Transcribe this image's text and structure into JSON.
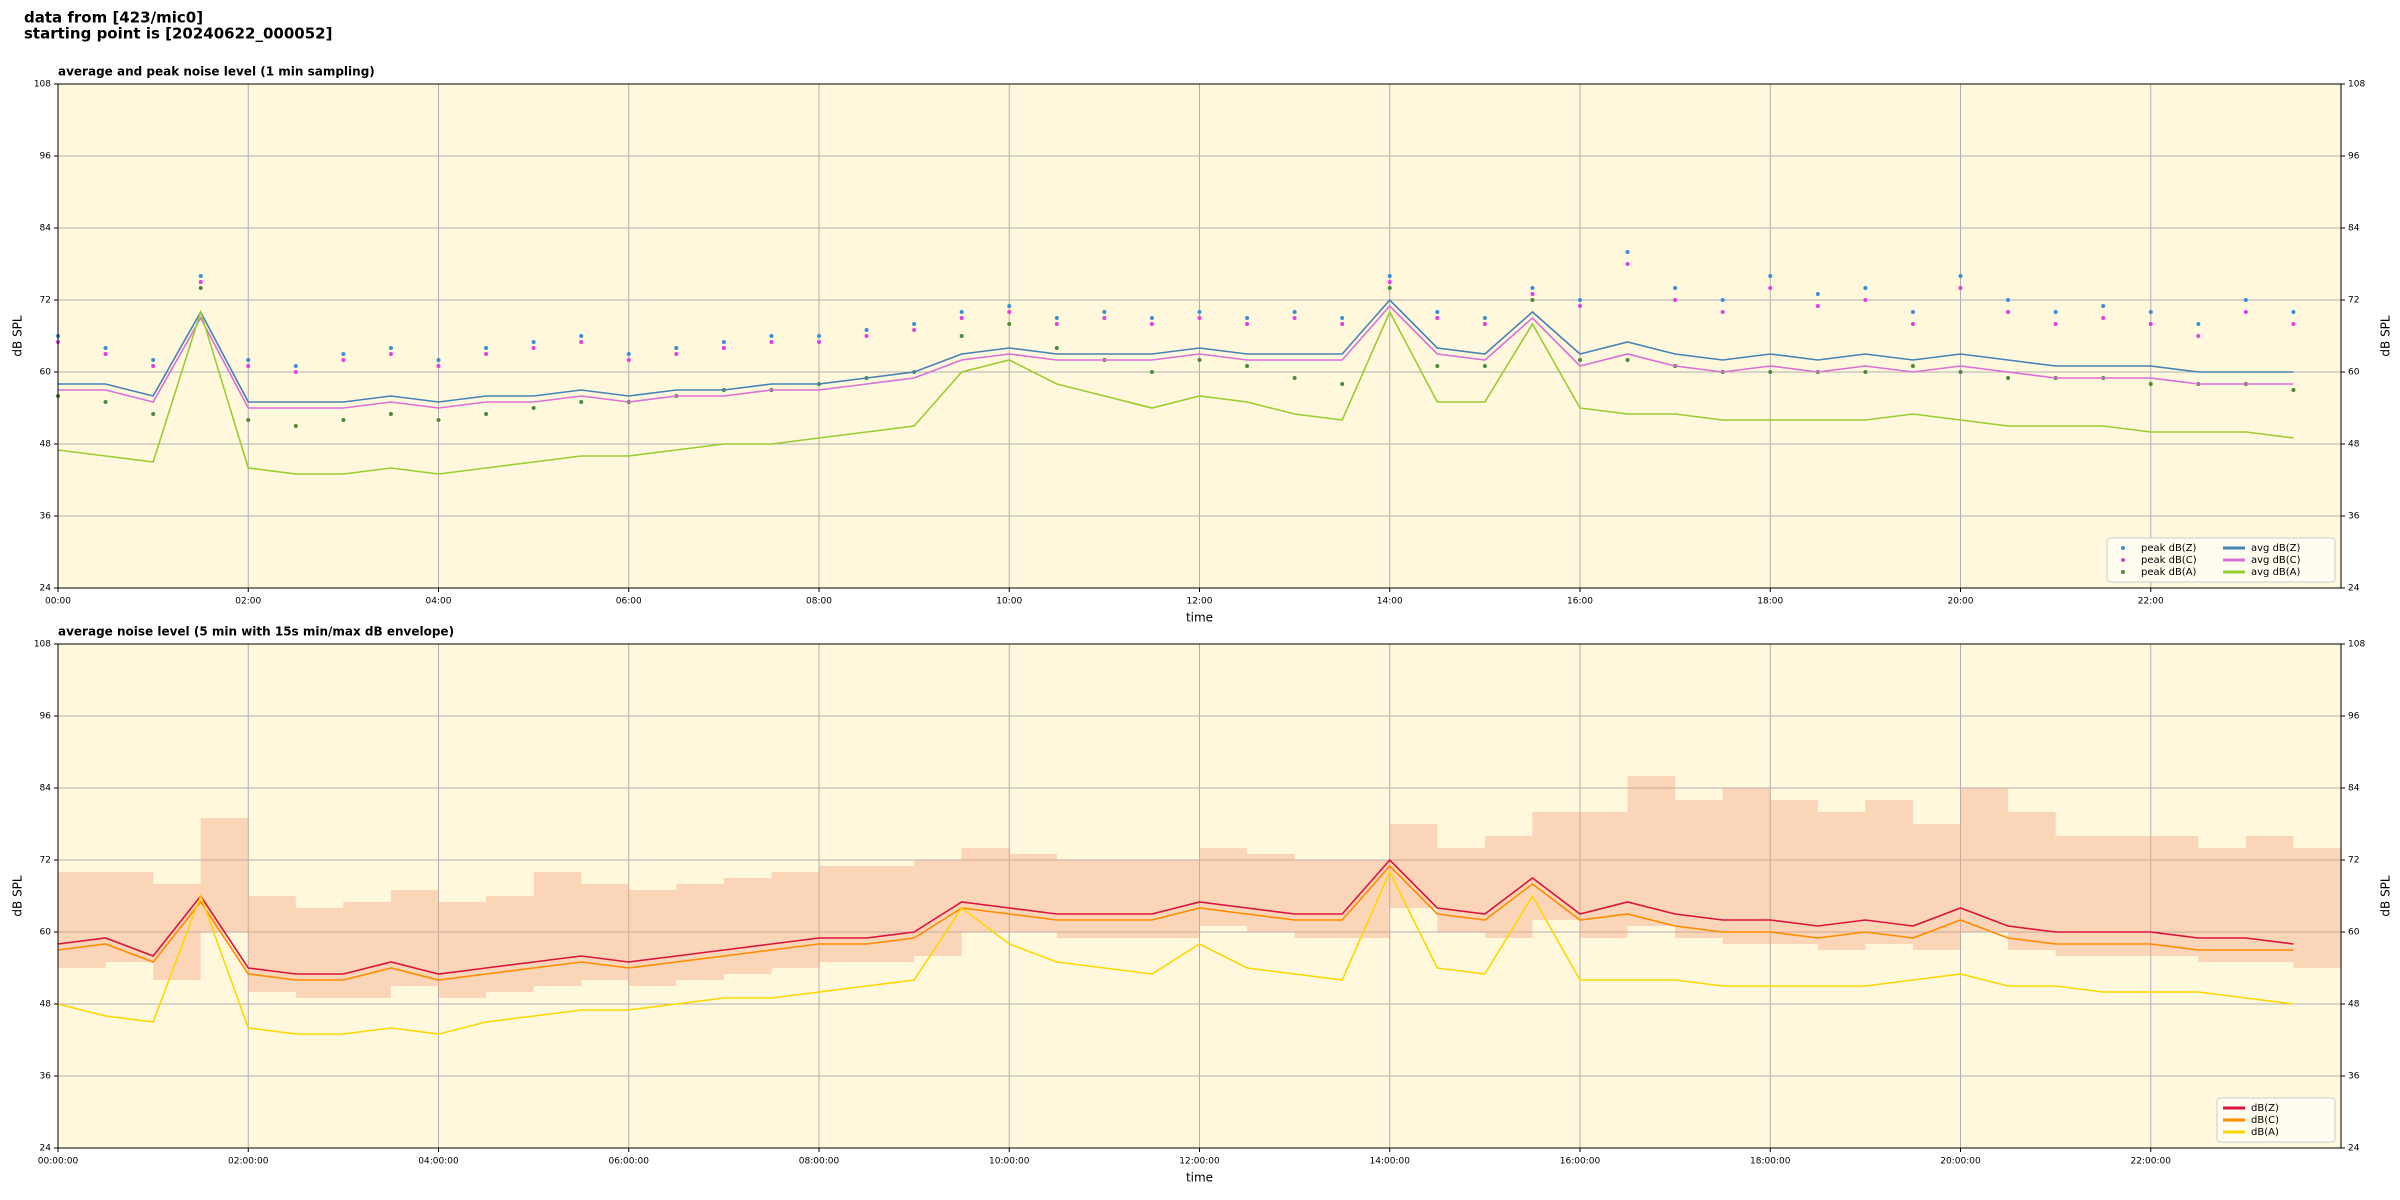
{
  "header": [
    "data from [423/mic0]",
    "starting point is [20240622_000052]"
  ],
  "chart_data": [
    {
      "type": "line",
      "title": "average and peak noise level (1 min sampling)",
      "xlabel": "time",
      "ylabel": "dB SPL",
      "background": "#fff8dc",
      "grid": true,
      "legend": "lower right",
      "xlim": [
        "00:00",
        "24:00"
      ],
      "xticks": [
        "00:00",
        "02:00",
        "04:00",
        "06:00",
        "08:00",
        "10:00",
        "12:00",
        "14:00",
        "16:00",
        "18:00",
        "20:00",
        "22:00"
      ],
      "ylim": [
        24,
        108
      ],
      "yticks": [
        24,
        36,
        48,
        60,
        72,
        84,
        96,
        108
      ],
      "x": [
        "00:00",
        "00:30",
        "01:00",
        "01:30",
        "02:00",
        "02:30",
        "03:00",
        "03:30",
        "04:00",
        "04:30",
        "05:00",
        "05:30",
        "06:00",
        "06:30",
        "07:00",
        "07:30",
        "08:00",
        "08:30",
        "09:00",
        "09:30",
        "10:00",
        "10:30",
        "11:00",
        "11:30",
        "12:00",
        "12:30",
        "13:00",
        "13:30",
        "14:00",
        "14:30",
        "15:00",
        "15:30",
        "16:00",
        "16:30",
        "17:00",
        "17:30",
        "18:00",
        "18:30",
        "19:00",
        "19:30",
        "20:00",
        "20:30",
        "21:00",
        "21:30",
        "22:00",
        "22:30",
        "23:00",
        "23:30"
      ],
      "series": [
        {
          "name": "peak dB(Z)",
          "type": "scatter",
          "color": "#3a8fd8",
          "values": [
            66,
            64,
            62,
            76,
            62,
            61,
            63,
            64,
            62,
            64,
            65,
            66,
            63,
            64,
            65,
            66,
            66,
            67,
            68,
            70,
            71,
            69,
            70,
            69,
            70,
            69,
            70,
            69,
            76,
            70,
            69,
            74,
            72,
            80,
            74,
            72,
            76,
            73,
            74,
            70,
            76,
            72,
            70,
            71,
            70,
            68,
            72,
            70
          ]
        },
        {
          "name": "peak dB(C)",
          "type": "scatter",
          "color": "#e040e0",
          "values": [
            65,
            63,
            61,
            75,
            61,
            60,
            62,
            63,
            61,
            63,
            64,
            65,
            62,
            63,
            64,
            65,
            65,
            66,
            67,
            69,
            70,
            68,
            69,
            68,
            69,
            68,
            69,
            68,
            75,
            69,
            68,
            73,
            71,
            78,
            72,
            70,
            74,
            71,
            72,
            68,
            74,
            70,
            68,
            69,
            68,
            66,
            70,
            68
          ]
        },
        {
          "name": "peak dB(A)",
          "type": "scatter",
          "color": "#4a8a3a",
          "values": [
            56,
            55,
            53,
            74,
            52,
            51,
            52,
            53,
            52,
            53,
            54,
            55,
            55,
            56,
            57,
            57,
            58,
            59,
            60,
            66,
            68,
            64,
            62,
            60,
            62,
            61,
            59,
            58,
            74,
            61,
            61,
            72,
            62,
            62,
            61,
            60,
            60,
            60,
            60,
            61,
            60,
            59,
            59,
            59,
            58,
            58,
            58,
            57
          ]
        },
        {
          "name": "avg dB(Z)",
          "type": "line",
          "color": "#4682b4",
          "values": [
            58,
            58,
            56,
            70,
            55,
            55,
            55,
            56,
            55,
            56,
            56,
            57,
            56,
            57,
            57,
            58,
            58,
            59,
            60,
            63,
            64,
            63,
            63,
            63,
            64,
            63,
            63,
            63,
            72,
            64,
            63,
            70,
            63,
            65,
            63,
            62,
            63,
            62,
            63,
            62,
            63,
            62,
            61,
            61,
            61,
            60,
            60,
            60
          ]
        },
        {
          "name": "avg dB(C)",
          "type": "line",
          "color": "#da70d6",
          "values": [
            57,
            57,
            55,
            69,
            54,
            54,
            54,
            55,
            54,
            55,
            55,
            56,
            55,
            56,
            56,
            57,
            57,
            58,
            59,
            62,
            63,
            62,
            62,
            62,
            63,
            62,
            62,
            62,
            71,
            63,
            62,
            69,
            61,
            63,
            61,
            60,
            61,
            60,
            61,
            60,
            61,
            60,
            59,
            59,
            59,
            58,
            58,
            58
          ]
        },
        {
          "name": "avg dB(A)",
          "type": "line",
          "color": "#9acd32",
          "values": [
            47,
            46,
            45,
            70,
            44,
            43,
            43,
            44,
            43,
            44,
            45,
            46,
            46,
            47,
            48,
            48,
            49,
            50,
            51,
            60,
            62,
            58,
            56,
            54,
            56,
            55,
            53,
            52,
            70,
            55,
            55,
            68,
            54,
            53,
            53,
            52,
            52,
            52,
            52,
            53,
            52,
            51,
            51,
            51,
            50,
            50,
            50,
            49
          ]
        }
      ]
    },
    {
      "type": "line",
      "title": "average noise level (5 min with 15s min/max dB envelope)",
      "xlabel": "time",
      "ylabel": "dB SPL",
      "background": "#fff8dc",
      "grid": true,
      "legend": "lower right",
      "xlim": [
        "00:00",
        "24:00"
      ],
      "xticks": [
        "00:00:00",
        "02:00:00",
        "04:00:00",
        "06:00:00",
        "08:00:00",
        "10:00:00",
        "12:00:00",
        "14:00:00",
        "16:00:00",
        "18:00:00",
        "20:00:00",
        "22:00:00"
      ],
      "ylim": [
        24,
        108
      ],
      "yticks": [
        24,
        36,
        48,
        60,
        72,
        84,
        96,
        108
      ],
      "x": [
        "00:00",
        "00:30",
        "01:00",
        "01:30",
        "02:00",
        "02:30",
        "03:00",
        "03:30",
        "04:00",
        "04:30",
        "05:00",
        "05:30",
        "06:00",
        "06:30",
        "07:00",
        "07:30",
        "08:00",
        "08:30",
        "09:00",
        "09:30",
        "10:00",
        "10:30",
        "11:00",
        "11:30",
        "12:00",
        "12:30",
        "13:00",
        "13:30",
        "14:00",
        "14:30",
        "15:00",
        "15:30",
        "16:00",
        "16:30",
        "17:00",
        "17:30",
        "18:00",
        "18:30",
        "19:00",
        "19:30",
        "20:00",
        "20:30",
        "21:00",
        "21:30",
        "22:00",
        "22:30",
        "23:00",
        "23:30"
      ],
      "envelope": {
        "color": "#f4a080",
        "low": [
          54,
          55,
          52,
          60,
          50,
          49,
          49,
          51,
          49,
          50,
          51,
          52,
          51,
          52,
          53,
          54,
          55,
          55,
          56,
          60,
          60,
          59,
          59,
          59,
          61,
          60,
          59,
          59,
          64,
          60,
          59,
          62,
          59,
          61,
          59,
          58,
          58,
          57,
          58,
          57,
          60,
          57,
          56,
          56,
          56,
          55,
          55,
          54
        ],
        "high": [
          70,
          70,
          68,
          79,
          66,
          64,
          65,
          67,
          65,
          66,
          70,
          68,
          67,
          68,
          69,
          70,
          71,
          71,
          72,
          74,
          73,
          72,
          72,
          72,
          74,
          73,
          72,
          72,
          78,
          74,
          76,
          80,
          80,
          86,
          82,
          84,
          82,
          80,
          82,
          78,
          84,
          80,
          76,
          76,
          76,
          74,
          76,
          74
        ]
      },
      "series": [
        {
          "name": "dB(Z)",
          "type": "line",
          "color": "#dc143c",
          "values": [
            58,
            59,
            56,
            66,
            54,
            53,
            53,
            55,
            53,
            54,
            55,
            56,
            55,
            56,
            57,
            58,
            59,
            59,
            60,
            65,
            64,
            63,
            63,
            63,
            65,
            64,
            63,
            63,
            72,
            64,
            63,
            69,
            63,
            65,
            63,
            62,
            62,
            61,
            62,
            61,
            64,
            61,
            60,
            60,
            60,
            59,
            59,
            58
          ]
        },
        {
          "name": "dB(C)",
          "type": "line",
          "color": "#ff8c00",
          "values": [
            57,
            58,
            55,
            65,
            53,
            52,
            52,
            54,
            52,
            53,
            54,
            55,
            54,
            55,
            56,
            57,
            58,
            58,
            59,
            64,
            63,
            62,
            62,
            62,
            64,
            63,
            62,
            62,
            71,
            63,
            62,
            68,
            62,
            63,
            61,
            60,
            60,
            59,
            60,
            59,
            62,
            59,
            58,
            58,
            58,
            57,
            57,
            57
          ]
        },
        {
          "name": "dB(A)",
          "type": "line",
          "color": "#ffd700",
          "values": [
            48,
            46,
            45,
            66,
            44,
            43,
            43,
            44,
            43,
            45,
            46,
            47,
            47,
            48,
            49,
            49,
            50,
            51,
            52,
            64,
            58,
            55,
            54,
            53,
            58,
            54,
            53,
            52,
            70,
            54,
            53,
            66,
            52,
            52,
            52,
            51,
            51,
            51,
            51,
            52,
            53,
            51,
            51,
            50,
            50,
            50,
            49,
            48
          ]
        }
      ]
    }
  ]
}
